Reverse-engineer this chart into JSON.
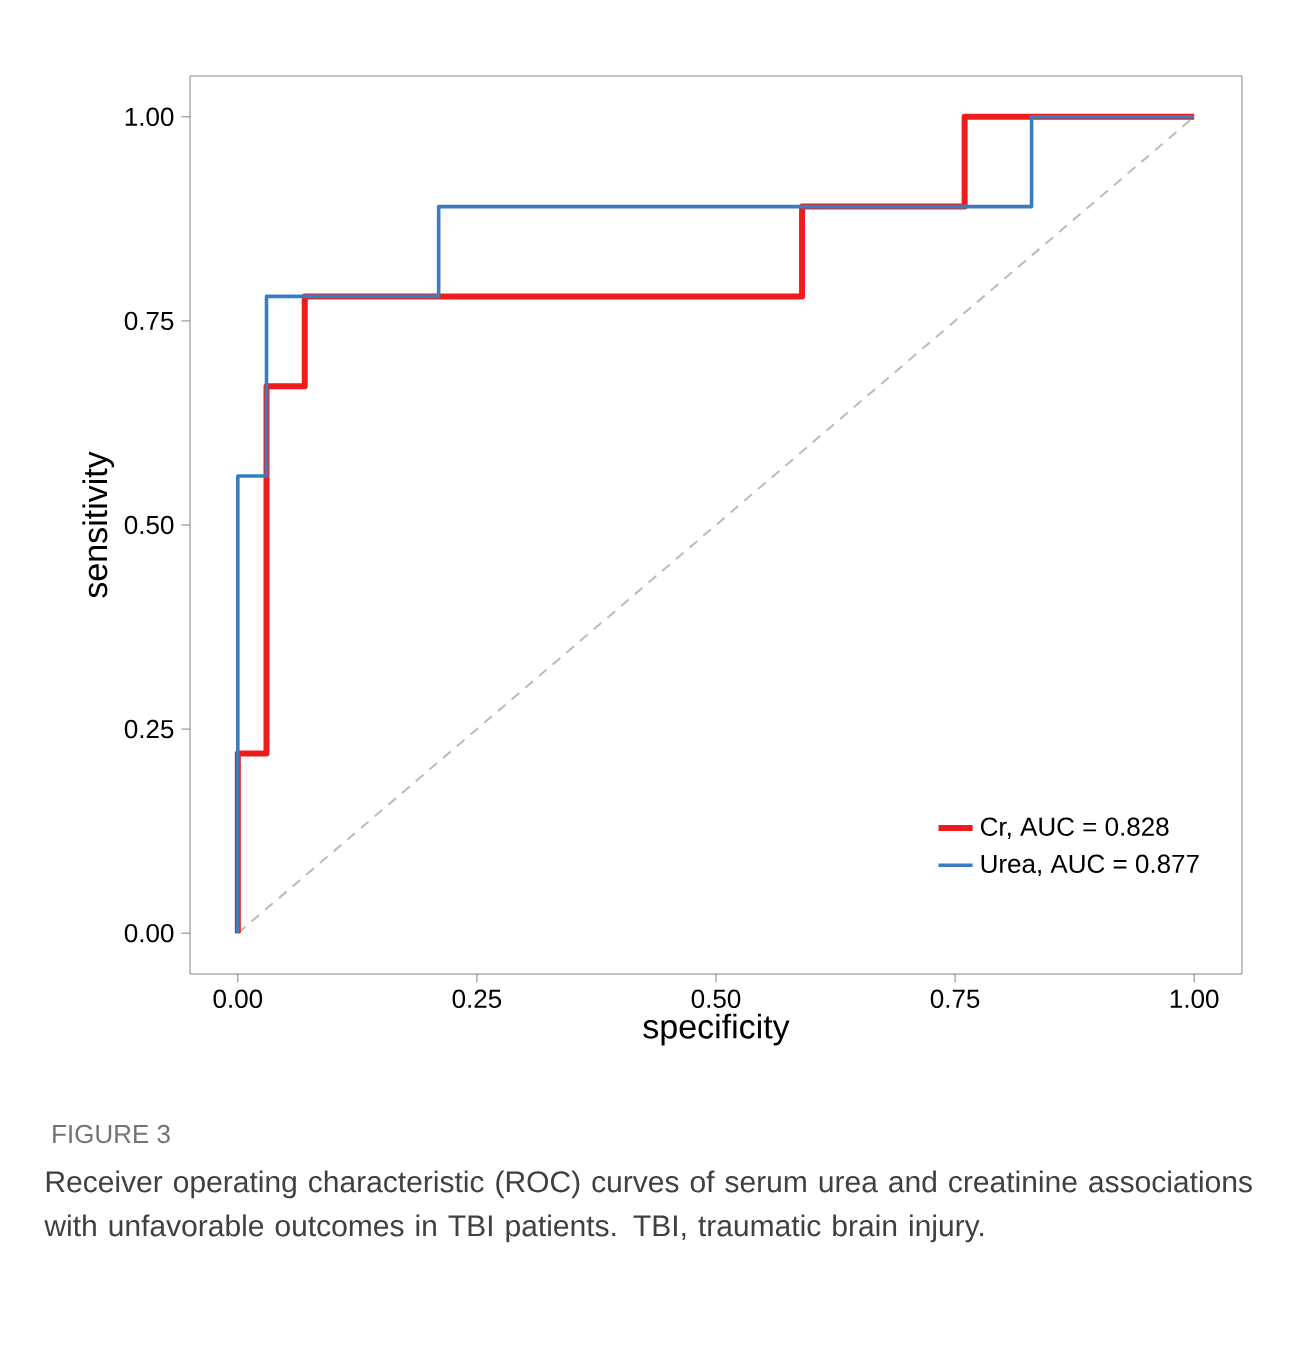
{
  "chart_data": {
    "type": "step",
    "xlabel": "specificity",
    "ylabel": "sensitivity",
    "xlim": [
      -0.05,
      1.05
    ],
    "ylim": [
      -0.05,
      1.05
    ],
    "xticks": [
      {
        "value": 0,
        "label": "0.00"
      },
      {
        "value": 0.25,
        "label": "0.25"
      },
      {
        "value": 0.5,
        "label": "0.50"
      },
      {
        "value": 0.75,
        "label": "0.75"
      },
      {
        "value": 1,
        "label": "1.00"
      }
    ],
    "yticks": [
      {
        "value": 0,
        "label": "0.00"
      },
      {
        "value": 0.25,
        "label": "0.25"
      },
      {
        "value": 0.5,
        "label": "0.50"
      },
      {
        "value": 0.75,
        "label": "0.75"
      },
      {
        "value": 1,
        "label": "1.00"
      }
    ],
    "series": [
      {
        "type": "line",
        "color": "#bbbbbb",
        "line_style": "dashed",
        "x": [
          0,
          1
        ],
        "values": [
          0,
          1
        ]
      },
      {
        "name": "Cr, AUC = 0.828",
        "color": "#ee1c1c",
        "x": [
          0,
          0,
          0.03,
          0.07,
          0.59,
          0.76,
          1
        ],
        "values": [
          0,
          0.22,
          0.67,
          0.78,
          0.89,
          1,
          1
        ]
      },
      {
        "name": "Urea, AUC = 0.877",
        "color": "#3a7dbf",
        "x": [
          0,
          0,
          0.03,
          0.21,
          0.83,
          1
        ],
        "values": [
          0,
          0.56,
          0.78,
          0.89,
          1,
          1
        ]
      }
    ],
    "legend": "bottom right",
    "grid": false,
    "annotations": [
      "FIGURE 3",
      "Receiver operating characteristic (ROC) curves of serum urea and creatinine associations with unfavorable outcomes in TBI patients. TBI, traumatic brain injury."
    ]
  }
}
